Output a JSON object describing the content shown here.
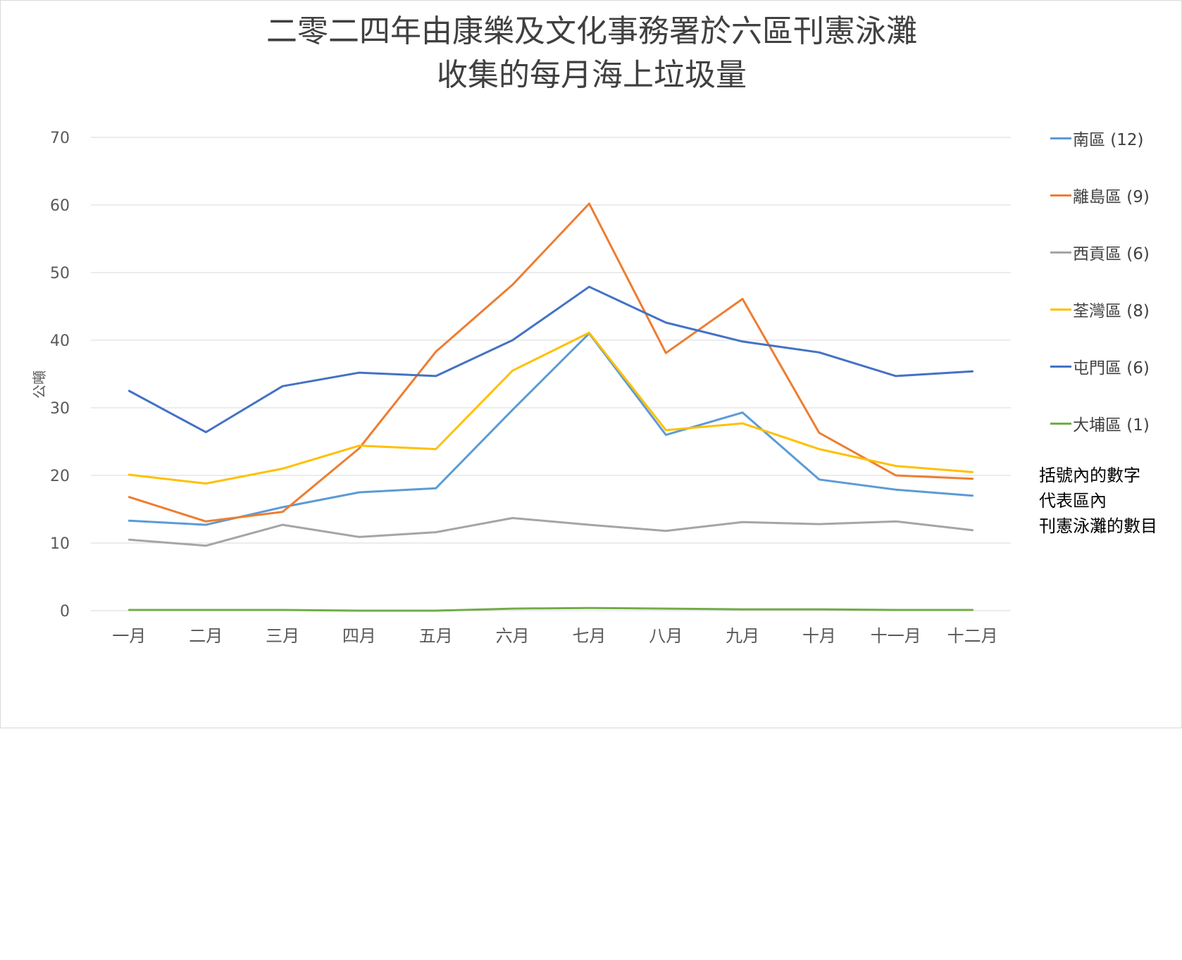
{
  "chart_data": {
    "type": "line",
    "title_lines": [
      "二零二四年由康樂及文化事務署於六區刊憲泳灘",
      "收集的每月海上垃圾量"
    ],
    "xlabel": "",
    "ylabel": "公噸",
    "ylim": [
      0,
      70
    ],
    "yticks": [
      0,
      10,
      20,
      30,
      40,
      50,
      60,
      70
    ],
    "grid": true,
    "legend_position": "right",
    "categories": [
      "一月",
      "二月",
      "三月",
      "四月",
      "五月",
      "六月",
      "七月",
      "八月",
      "九月",
      "十月",
      "十一月",
      "十二月"
    ],
    "series": [
      {
        "name": "南區 (12)",
        "color": "#5b9bd5",
        "values": [
          13.3,
          12.7,
          15.3,
          17.5,
          18.1,
          29.7,
          41.0,
          26.0,
          29.3,
          19.4,
          17.9,
          17.0
        ]
      },
      {
        "name": "離島區 (9)",
        "color": "#ed7d31",
        "values": [
          16.8,
          13.2,
          14.6,
          24.0,
          38.3,
          48.2,
          60.2,
          38.1,
          46.1,
          26.3,
          20.0,
          19.5
        ]
      },
      {
        "name": "西貢區 (6)",
        "color": "#a5a5a5",
        "values": [
          10.5,
          9.6,
          12.7,
          10.9,
          11.6,
          13.7,
          12.7,
          11.8,
          13.1,
          12.8,
          13.2,
          11.9
        ]
      },
      {
        "name": "荃灣區 (8)",
        "color": "#ffc000",
        "values": [
          20.1,
          18.8,
          21.0,
          24.4,
          23.9,
          35.5,
          41.1,
          26.7,
          27.7,
          23.9,
          21.4,
          20.5
        ]
      },
      {
        "name": "屯門區 (6)",
        "color": "#4472c4",
        "values": [
          32.5,
          26.4,
          33.2,
          35.2,
          34.7,
          40.0,
          47.9,
          42.6,
          39.8,
          38.2,
          34.7,
          35.4
        ]
      },
      {
        "name": "大埔區 (1)",
        "color": "#70ad47",
        "values": [
          0.1,
          0.1,
          0.1,
          0.0,
          0.0,
          0.3,
          0.4,
          0.3,
          0.2,
          0.2,
          0.1,
          0.1
        ]
      }
    ],
    "note_lines": [
      "括號內的數字",
      "代表區內",
      "刊憲泳灘的數目"
    ]
  },
  "colors": {
    "gridline": "#d9d9d9",
    "text": "#595959",
    "title": "#404040"
  }
}
